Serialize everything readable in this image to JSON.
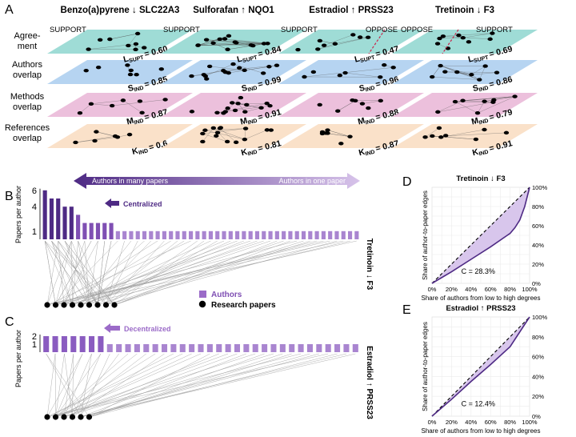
{
  "panel_letters": {
    "a": "A",
    "b": "B",
    "c": "C",
    "d": "D",
    "e": "E"
  },
  "layer_labels": {
    "agreement": "Agree-",
    "agreement2": "ment",
    "authors": "Authors",
    "authors2": "overlap",
    "methods": "Methods",
    "methods2": "overlap",
    "references": "References",
    "references2": "overlap"
  },
  "columns": [
    {
      "title": "Benzo(a)pyrene ↓ SLC22A3",
      "support": "SUPPORT",
      "oppose": "",
      "L": "L",
      "L_sub": "SUPT",
      "L_val": "= 0.60",
      "S": "S",
      "S_sub": "IND",
      "S_val": "= 0.85",
      "M": "M",
      "M_sub": "IND",
      "M_val": "= 0.87",
      "K": "K",
      "K_sub": "IND",
      "K_val": "= 0.6"
    },
    {
      "title": "Sulforafan ↑ NQO1",
      "support": "SUPPORT",
      "oppose": "",
      "L": "L",
      "L_sub": "SUPT",
      "L_val": "= 0.84",
      "S": "S",
      "S_sub": "IND",
      "S_val": "= 0.99",
      "M": "M",
      "M_sub": "IND",
      "M_val": "= 0.91",
      "K": "K",
      "K_sub": "IND",
      "K_val": "= 0.81"
    },
    {
      "title": "Estradiol ↑ PRSS23",
      "support": "SUPPORT",
      "oppose": "OPPOSE",
      "L": "L",
      "L_sub": "SUPT",
      "L_val": "= 0.47",
      "S": "S",
      "S_sub": "IND",
      "S_val": "= 0.96",
      "M": "M",
      "M_sub": "IND",
      "M_val": "= 0.88",
      "K": "K",
      "K_sub": "IND",
      "K_val": "= 0.87"
    },
    {
      "title": "Tretinoin ↓ F3",
      "support": "SUPPORT",
      "oppose": "OPPOSE",
      "L": "L",
      "L_sub": "SUPT",
      "L_val": "= 0.69",
      "S": "S",
      "S_sub": "IND",
      "S_val": "= 0.86",
      "M": "M",
      "M_sub": "IND",
      "M_val": "= 0.79",
      "K": "K",
      "K_sub": "IND",
      "K_val": "= 0.91"
    }
  ],
  "colors": {
    "agreement": "#8ed6cf",
    "authors": "#a9cdef",
    "methods": "#e9b5d6",
    "references": "#f9dcc0",
    "purple_dark": "#4e2a84",
    "purple": "#7f4fb3",
    "purple_light": "#b48fd6",
    "oppose_line": "#c8274c"
  },
  "arrow_left": "Authors in many papers",
  "arrow_right": "Authors in one paper",
  "panel_b": {
    "ylabel": "Papers per author",
    "yticks": [
      "6",
      "4",
      "1"
    ],
    "annotation": "Centralized",
    "side_label": "Tretinoin ↓ F3",
    "bar_values": [
      6,
      5,
      5,
      4,
      4,
      3,
      2,
      2,
      2,
      2,
      2,
      1,
      1,
      1,
      1,
      1,
      1,
      1,
      1,
      1,
      1,
      1,
      1,
      1,
      1,
      1,
      1,
      1,
      1,
      1,
      1,
      1,
      1,
      1,
      1,
      1,
      1,
      1,
      1,
      1,
      1,
      1,
      1,
      1,
      1,
      1,
      1,
      1
    ],
    "paper_count": 9
  },
  "panel_c": {
    "ylabel": "Papers per author",
    "yticks": [
      "2",
      "1"
    ],
    "annotation": "Decentralized",
    "side_label": "Estradiol ↑ PRSS23",
    "legend_authors": "Authors",
    "legend_papers": "Research papers",
    "bar_values": [
      2,
      2,
      2,
      2,
      2,
      2,
      2,
      1,
      1,
      1,
      1,
      1,
      1,
      1,
      1,
      1,
      1,
      1,
      1,
      1,
      1,
      1,
      1,
      1,
      1,
      1,
      1,
      1,
      1,
      1,
      1,
      1,
      1,
      1,
      1
    ],
    "paper_count": 6
  },
  "chart_data": [
    {
      "type": "line",
      "title": "Tretinoin ↓ F3",
      "xlabel": "Share of authors from low to high degrees",
      "ylabel": "Share of author-to-paper edges",
      "xticks": [
        "0%",
        "20%",
        "40%",
        "60%",
        "80%",
        "100%"
      ],
      "yticks": [
        "0%",
        "20%",
        "40%",
        "60%",
        "80%",
        "100%"
      ],
      "xlim": [
        0,
        100
      ],
      "ylim": [
        0,
        100
      ],
      "series": [
        {
          "x": [
            0,
            20,
            40,
            60,
            80,
            85,
            90,
            95,
            100
          ],
          "y": [
            0,
            12,
            25,
            38,
            52,
            58,
            66,
            80,
            100
          ]
        },
        {
          "x": [
            0,
            100
          ],
          "y": [
            0,
            100
          ],
          "style": "dashed"
        }
      ],
      "annotation": "C = 28.3%"
    },
    {
      "type": "line",
      "title": "Estradiol ↑ PRSS23",
      "xlabel": "Share of authors from low to high degrees",
      "ylabel": "Share of author-to-paper edges",
      "xticks": [
        "0%",
        "20%",
        "40%",
        "60%",
        "80%",
        "100%"
      ],
      "yticks": [
        "0%",
        "20%",
        "40%",
        "60%",
        "80%",
        "100%"
      ],
      "xlim": [
        0,
        100
      ],
      "ylim": [
        0,
        100
      ],
      "series": [
        {
          "x": [
            0,
            20,
            40,
            60,
            80,
            100
          ],
          "y": [
            0,
            17,
            35,
            52,
            70,
            100
          ]
        },
        {
          "x": [
            0,
            100
          ],
          "y": [
            0,
            100
          ],
          "style": "dashed"
        }
      ],
      "annotation": "C = 12.4%"
    }
  ]
}
